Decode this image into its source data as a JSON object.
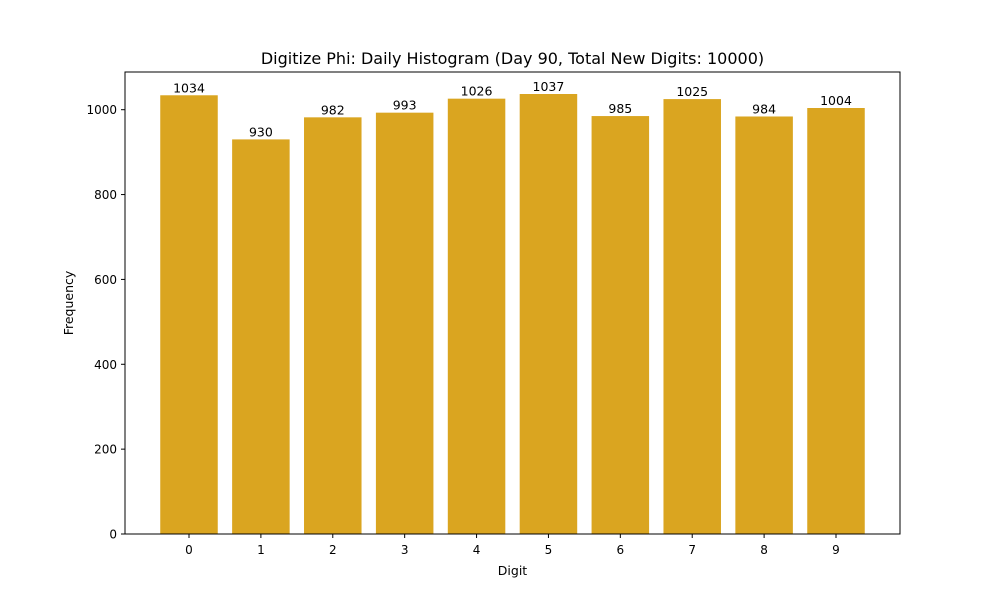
{
  "chart_data": {
    "type": "bar",
    "title": "Digitize Phi: Daily Histogram (Day 90, Total New Digits: 10000)",
    "xlabel": "Digit",
    "ylabel": "Frequency",
    "categories": [
      "0",
      "1",
      "2",
      "3",
      "4",
      "5",
      "6",
      "7",
      "8",
      "9"
    ],
    "values": [
      1034,
      930,
      982,
      993,
      1026,
      1037,
      985,
      1025,
      984,
      1004
    ],
    "ylim": [
      0,
      1088.85
    ],
    "yticks": [
      0,
      200,
      400,
      600,
      800,
      1000
    ],
    "bar_color": "#DAA520",
    "grid": false,
    "legend": null
  }
}
